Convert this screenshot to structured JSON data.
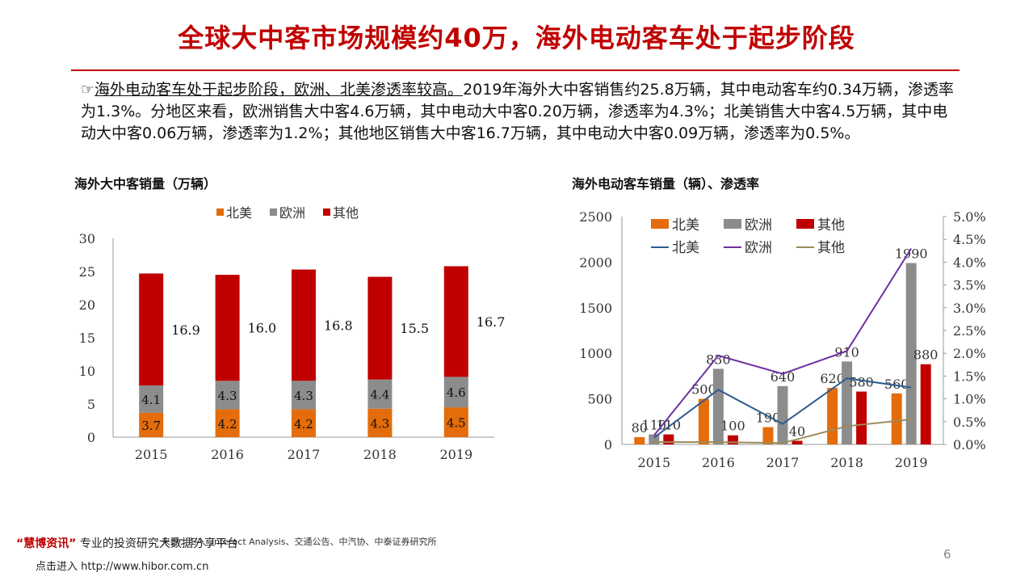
{
  "slide": {
    "title": "全球大中客市场规模约40万，海外电动客车处于起步阶段",
    "bullet_marker": "☞",
    "lead": "海外电动客车处于起步阶段，欧洲、北美渗透率较高。",
    "body": "2019年海外大中客销售约25.8万辆，其中电动客车约0.34万辆，渗透率为1.3%。分地区来看，欧洲销售大中客4.6万辆，其中电动大中客0.20万辆，渗透率为4.3%；北美销售大中客4.5万辆，其中电动大中客0.06万辆，渗透率为1.2%；其他地区销售大中客16.7万辆，其中电动大中客0.09万辆，渗透率为0.5%。",
    "page_number": "6"
  },
  "footer": {
    "brand": "“慧博资讯”",
    "tagline": "专业的投资研究大数据分享平台",
    "source": "来源：IEA、Interact Analysis、交通公告、中汽协、中泰证券研究所",
    "link_prefix": "点击进入",
    "link": "http://www.hibor.com.cn"
  },
  "chart_data": [
    {
      "type": "bar",
      "stacked": true,
      "title": "海外大中客销量（万辆）",
      "categories": [
        "2015",
        "2016",
        "2017",
        "2018",
        "2019"
      ],
      "series": [
        {
          "name": "北美",
          "color": "#e46c0a",
          "values": [
            3.7,
            4.2,
            4.2,
            4.3,
            4.5
          ]
        },
        {
          "name": "欧洲",
          "color": "#8c8c8c",
          "values": [
            4.1,
            4.3,
            4.3,
            4.4,
            4.6
          ]
        },
        {
          "name": "其他",
          "color": "#c00000",
          "values": [
            16.9,
            16.0,
            16.8,
            15.5,
            16.7
          ]
        }
      ],
      "ylim": [
        0,
        30
      ],
      "yticks": [
        "0",
        "5",
        "10",
        "15",
        "20",
        "25",
        "30"
      ],
      "legend": "top"
    },
    {
      "type": "bar+line",
      "title": "海外电动客车销量（辆）、渗透率",
      "categories": [
        "2015",
        "2016",
        "2017",
        "2018",
        "2019"
      ],
      "bar_series": [
        {
          "name": "北美",
          "color": "#e46c0a",
          "values": [
            80,
            500,
            190,
            620,
            560
          ]
        },
        {
          "name": "欧洲",
          "color": "#8c8c8c",
          "values": [
            110,
            830,
            640,
            910,
            1990
          ]
        },
        {
          "name": "其他",
          "color": "#c00000",
          "values": [
            110,
            100,
            40,
            580,
            880
          ]
        }
      ],
      "bar_labels": {
        "北美": [
          "80",
          "500",
          "190",
          "620",
          "560"
        ],
        "欧洲": [
          "110",
          "830",
          "640",
          "910",
          "1990"
        ],
        "其他": [
          "110",
          "100",
          "40",
          "580",
          "880"
        ]
      },
      "line_series": [
        {
          "name": "北美",
          "color": "#2e5b8f",
          "values": [
            0.15,
            1.2,
            0.45,
            1.45,
            1.25
          ]
        },
        {
          "name": "欧洲",
          "color": "#7030a0",
          "values": [
            0.2,
            1.95,
            1.55,
            2.05,
            4.3
          ]
        },
        {
          "name": "其他",
          "color": "#9c8a5a",
          "values": [
            0.05,
            0.05,
            0.03,
            0.4,
            0.55
          ]
        }
      ],
      "ylim_left": [
        0,
        2500
      ],
      "yticks_left": [
        "0",
        "500",
        "1000",
        "1500",
        "2000",
        "2500"
      ],
      "ylim_right": [
        0,
        5.0
      ],
      "yticks_right": [
        "0.0%",
        "0.5%",
        "1.0%",
        "1.5%",
        "2.0%",
        "2.5%",
        "3.0%",
        "3.5%",
        "4.0%",
        "4.5%",
        "5.0%"
      ],
      "legend": "top-left"
    }
  ]
}
